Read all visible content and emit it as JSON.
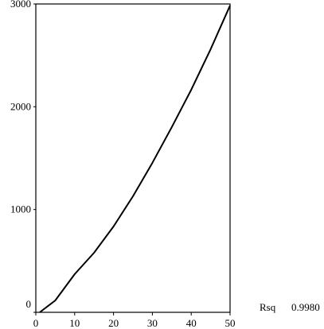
{
  "chart_data": {
    "type": "line",
    "x": [
      1,
      5,
      10,
      15,
      20,
      25,
      30,
      35,
      40,
      45,
      50
    ],
    "series": [
      {
        "color": "#000000",
        "values": [
          0,
          115,
          371,
          580,
          835,
          1129,
          1454,
          1802,
          2165,
          2560,
          2985
        ]
      }
    ],
    "xlim": [
      0,
      50
    ],
    "xticks": [
      0,
      10,
      20,
      30,
      40,
      50
    ],
    "ylim": [
      0,
      3000
    ],
    "yticks": [
      0,
      1000,
      2000,
      3000
    ],
    "annotations": [
      "Rsq",
      "0.9980"
    ]
  }
}
